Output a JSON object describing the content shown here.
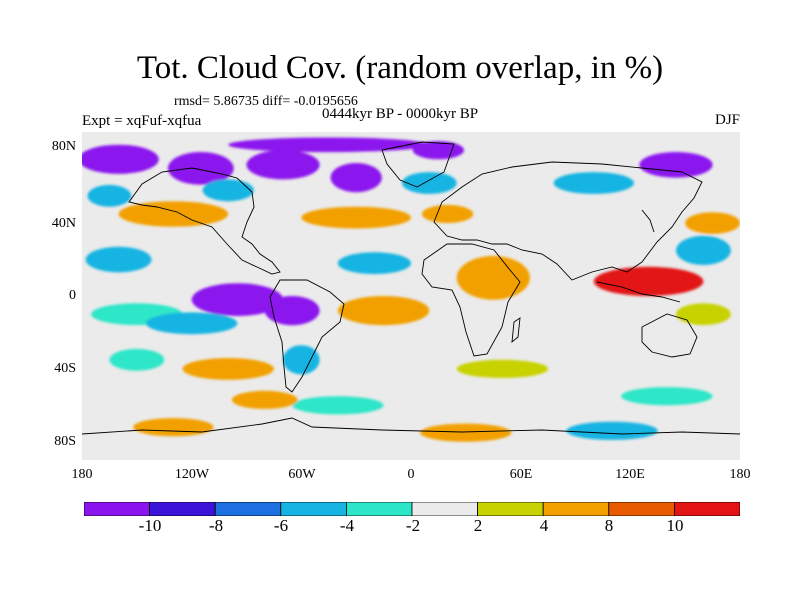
{
  "title": "Tot. Cloud Cov. (random overlap, in %)",
  "stats": "rmsd= 5.86735 diff= -0.0195656",
  "experiment": "Expt = xqFuf-xqfua",
  "period": "0444kyr BP - 0000kyr BP",
  "season": "DJF",
  "axes": {
    "lat_ticks": [
      "80N",
      "40N",
      "0",
      "40S",
      "80S"
    ],
    "lat_values": [
      80,
      40,
      0,
      -40,
      -80
    ],
    "lon_ticks": [
      "180",
      "120W",
      "60W",
      "0",
      "60E",
      "120E",
      "180"
    ],
    "lon_values": [
      -180,
      -120,
      -60,
      0,
      60,
      120,
      180
    ],
    "lat_range": [
      -90,
      90
    ],
    "lon_range": [
      -180,
      180
    ]
  },
  "colorbar": {
    "labels": [
      "-10",
      "-8",
      "-6",
      "-4",
      "-2",
      "2",
      "4",
      "8",
      "10"
    ],
    "colors": [
      "#8b14ee",
      "#3c14d8",
      "#1e6fe0",
      "#16b4e2",
      "#2de6c8",
      "#ebebeb",
      "#c8d200",
      "#f2a000",
      "#e85a00",
      "#e21414"
    ]
  },
  "map_regions": [
    {
      "lon": -160,
      "lat": 75,
      "rx": 22,
      "ry": 8,
      "level": 0
    },
    {
      "lon": -115,
      "lat": 70,
      "rx": 18,
      "ry": 9,
      "level": 0
    },
    {
      "lon": -70,
      "lat": 72,
      "rx": 20,
      "ry": 8,
      "level": 0
    },
    {
      "lon": -45,
      "lat": 83,
      "rx": 55,
      "ry": 4,
      "level": 0
    },
    {
      "lon": -30,
      "lat": 65,
      "rx": 14,
      "ry": 8,
      "level": 0
    },
    {
      "lon": 15,
      "lat": 80,
      "rx": 14,
      "ry": 5,
      "level": 0
    },
    {
      "lon": 145,
      "lat": 72,
      "rx": 20,
      "ry": 7,
      "level": 0
    },
    {
      "lon": -165,
      "lat": 55,
      "rx": 12,
      "ry": 6,
      "level": 3
    },
    {
      "lon": -100,
      "lat": 58,
      "rx": 14,
      "ry": 6,
      "level": 3
    },
    {
      "lon": 10,
      "lat": 62,
      "rx": 15,
      "ry": 6,
      "level": 3
    },
    {
      "lon": 100,
      "lat": 62,
      "rx": 22,
      "ry": 6,
      "level": 3
    },
    {
      "lon": -130,
      "lat": 45,
      "rx": 30,
      "ry": 7,
      "level": 7
    },
    {
      "lon": -30,
      "lat": 43,
      "rx": 30,
      "ry": 6,
      "level": 7
    },
    {
      "lon": 20,
      "lat": 45,
      "rx": 14,
      "ry": 5,
      "level": 7
    },
    {
      "lon": 165,
      "lat": 40,
      "rx": 15,
      "ry": 6,
      "level": 7
    },
    {
      "lon": -160,
      "lat": 20,
      "rx": 18,
      "ry": 7,
      "level": 3
    },
    {
      "lon": -20,
      "lat": 18,
      "rx": 20,
      "ry": 6,
      "level": 3
    },
    {
      "lon": 160,
      "lat": 25,
      "rx": 15,
      "ry": 8,
      "level": 3
    },
    {
      "lon": 45,
      "lat": 10,
      "rx": 20,
      "ry": 12,
      "level": 7
    },
    {
      "lon": 130,
      "lat": 8,
      "rx": 30,
      "ry": 8,
      "level": 9
    },
    {
      "lon": 160,
      "lat": -10,
      "rx": 15,
      "ry": 6,
      "level": 6
    },
    {
      "lon": -95,
      "lat": -2,
      "rx": 25,
      "ry": 9,
      "level": 0
    },
    {
      "lon": -65,
      "lat": -8,
      "rx": 15,
      "ry": 8,
      "level": 0
    },
    {
      "lon": -150,
      "lat": -10,
      "rx": 25,
      "ry": 6,
      "level": 4
    },
    {
      "lon": -120,
      "lat": -15,
      "rx": 25,
      "ry": 6,
      "level": 3
    },
    {
      "lon": -15,
      "lat": -8,
      "rx": 25,
      "ry": 8,
      "level": 7
    },
    {
      "lon": -100,
      "lat": -40,
      "rx": 25,
      "ry": 6,
      "level": 7
    },
    {
      "lon": -150,
      "lat": -35,
      "rx": 15,
      "ry": 6,
      "level": 4
    },
    {
      "lon": -60,
      "lat": -35,
      "rx": 10,
      "ry": 8,
      "level": 3
    },
    {
      "lon": 50,
      "lat": -40,
      "rx": 25,
      "ry": 5,
      "level": 6
    },
    {
      "lon": 140,
      "lat": -55,
      "rx": 25,
      "ry": 5,
      "level": 4
    },
    {
      "lon": -40,
      "lat": -60,
      "rx": 25,
      "ry": 5,
      "level": 4
    },
    {
      "lon": -80,
      "lat": -57,
      "rx": 18,
      "ry": 5,
      "level": 7
    },
    {
      "lon": -130,
      "lat": -72,
      "rx": 22,
      "ry": 5,
      "level": 7
    },
    {
      "lon": 30,
      "lat": -75,
      "rx": 25,
      "ry": 5,
      "level": 7
    },
    {
      "lon": 110,
      "lat": -74,
      "rx": 25,
      "ry": 5,
      "level": 3
    }
  ]
}
